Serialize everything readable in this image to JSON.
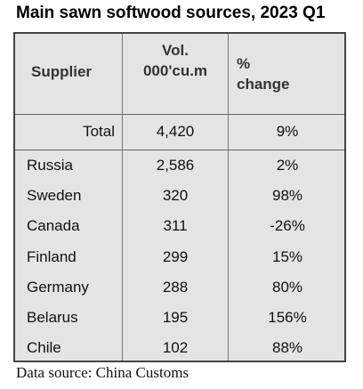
{
  "title": "Main sawn softwood sources, 2023 Q1",
  "table": {
    "headers": {
      "supplier": "Supplier",
      "volume_line1": "Vol.",
      "volume_line2": "000'cu.m",
      "change_line1": "%",
      "change_line2": "change"
    },
    "total": {
      "label": "Total",
      "volume": "4,420",
      "change": "9%"
    },
    "rows": [
      {
        "supplier": "Russia",
        "volume": "2,586",
        "change": "2%"
      },
      {
        "supplier": "Sweden",
        "volume": "320",
        "change": "98%"
      },
      {
        "supplier": "Canada",
        "volume": "311",
        "change": "-26%"
      },
      {
        "supplier": "Finland",
        "volume": "299",
        "change": "15%"
      },
      {
        "supplier": "Germany",
        "volume": "288",
        "change": "80%"
      },
      {
        "supplier": "Belarus",
        "volume": "195",
        "change": "156%"
      },
      {
        "supplier": "Chile",
        "volume": "102",
        "change": "88%"
      }
    ]
  },
  "footer": "Data source: China Customs",
  "colors": {
    "table_background": "#e4e4e4",
    "border": "#444444",
    "text": "#111111"
  }
}
